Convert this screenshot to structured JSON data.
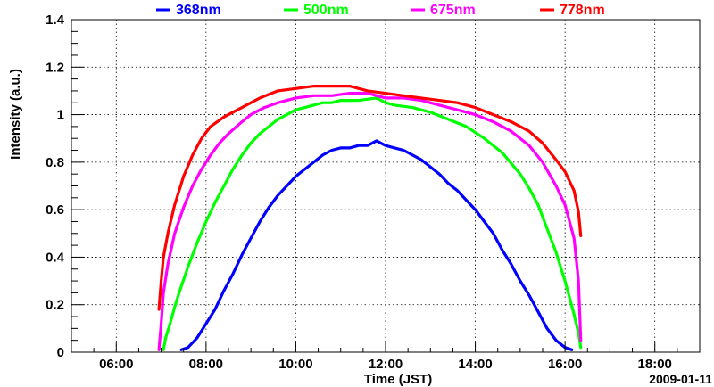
{
  "chart_data": {
    "type": "line",
    "title": "",
    "xlabel": "Time (JST)",
    "ylabel": "Intensity (a.u.)",
    "date_label": "2009-01-11",
    "xlim": [
      5.0,
      19.0
    ],
    "ylim": [
      0,
      1.4
    ],
    "x_ticks": [
      6,
      8,
      10,
      12,
      14,
      16,
      18
    ],
    "x_tick_labels": [
      "06:00",
      "08:00",
      "10:00",
      "12:00",
      "14:00",
      "16:00",
      "18:00"
    ],
    "y_ticks": [
      0,
      0.2,
      0.4,
      0.6,
      0.8,
      1.0,
      1.2,
      1.4
    ],
    "y_tick_labels": [
      "0",
      "0.2",
      "0.4",
      "0.6",
      "0.8",
      "1",
      "1.2",
      "1.4"
    ],
    "grid": true,
    "legend_position": "top",
    "series": [
      {
        "name": "368nm",
        "color": "#0000ff",
        "points": [
          [
            7.45,
            0.01
          ],
          [
            7.6,
            0.02
          ],
          [
            7.8,
            0.06
          ],
          [
            8.0,
            0.12
          ],
          [
            8.2,
            0.18
          ],
          [
            8.4,
            0.26
          ],
          [
            8.6,
            0.33
          ],
          [
            8.8,
            0.41
          ],
          [
            9.0,
            0.48
          ],
          [
            9.2,
            0.55
          ],
          [
            9.4,
            0.61
          ],
          [
            9.6,
            0.66
          ],
          [
            9.8,
            0.7
          ],
          [
            10.0,
            0.74
          ],
          [
            10.2,
            0.77
          ],
          [
            10.4,
            0.8
          ],
          [
            10.6,
            0.83
          ],
          [
            10.8,
            0.85
          ],
          [
            11.0,
            0.86
          ],
          [
            11.2,
            0.86
          ],
          [
            11.4,
            0.87
          ],
          [
            11.6,
            0.87
          ],
          [
            11.8,
            0.89
          ],
          [
            12.0,
            0.87
          ],
          [
            12.2,
            0.86
          ],
          [
            12.4,
            0.85
          ],
          [
            12.6,
            0.83
          ],
          [
            12.8,
            0.81
          ],
          [
            13.0,
            0.78
          ],
          [
            13.2,
            0.75
          ],
          [
            13.4,
            0.71
          ],
          [
            13.6,
            0.68
          ],
          [
            13.8,
            0.64
          ],
          [
            14.0,
            0.6
          ],
          [
            14.2,
            0.55
          ],
          [
            14.4,
            0.5
          ],
          [
            14.6,
            0.43
          ],
          [
            14.8,
            0.37
          ],
          [
            15.0,
            0.3
          ],
          [
            15.2,
            0.24
          ],
          [
            15.4,
            0.17
          ],
          [
            15.6,
            0.1
          ],
          [
            15.8,
            0.05
          ],
          [
            16.0,
            0.02
          ],
          [
            16.15,
            0.01
          ]
        ]
      },
      {
        "name": "500nm",
        "color": "#00ff00",
        "points": [
          [
            7.05,
            0.01
          ],
          [
            7.1,
            0.06
          ],
          [
            7.2,
            0.12
          ],
          [
            7.3,
            0.19
          ],
          [
            7.4,
            0.25
          ],
          [
            7.6,
            0.36
          ],
          [
            7.8,
            0.46
          ],
          [
            8.0,
            0.55
          ],
          [
            8.2,
            0.63
          ],
          [
            8.4,
            0.7
          ],
          [
            8.6,
            0.77
          ],
          [
            8.8,
            0.83
          ],
          [
            9.0,
            0.88
          ],
          [
            9.2,
            0.92
          ],
          [
            9.4,
            0.95
          ],
          [
            9.6,
            0.98
          ],
          [
            9.8,
            1.0
          ],
          [
            10.0,
            1.02
          ],
          [
            10.2,
            1.03
          ],
          [
            10.4,
            1.04
          ],
          [
            10.6,
            1.05
          ],
          [
            10.8,
            1.05
          ],
          [
            11.0,
            1.06
          ],
          [
            11.4,
            1.06
          ],
          [
            11.8,
            1.07
          ],
          [
            12.0,
            1.05
          ],
          [
            12.2,
            1.04
          ],
          [
            12.6,
            1.03
          ],
          [
            13.0,
            1.01
          ],
          [
            13.4,
            0.98
          ],
          [
            13.8,
            0.95
          ],
          [
            14.2,
            0.9
          ],
          [
            14.6,
            0.84
          ],
          [
            15.0,
            0.75
          ],
          [
            15.2,
            0.69
          ],
          [
            15.4,
            0.62
          ],
          [
            15.6,
            0.52
          ],
          [
            15.8,
            0.42
          ],
          [
            16.0,
            0.3
          ],
          [
            16.2,
            0.16
          ],
          [
            16.3,
            0.08
          ],
          [
            16.35,
            0.02
          ]
        ]
      },
      {
        "name": "675nm",
        "color": "#ff00ff",
        "points": [
          [
            6.95,
            0.01
          ],
          [
            7.0,
            0.12
          ],
          [
            7.05,
            0.25
          ],
          [
            7.15,
            0.37
          ],
          [
            7.3,
            0.5
          ],
          [
            7.5,
            0.61
          ],
          [
            7.7,
            0.7
          ],
          [
            7.9,
            0.77
          ],
          [
            8.1,
            0.83
          ],
          [
            8.3,
            0.88
          ],
          [
            8.5,
            0.92
          ],
          [
            8.8,
            0.97
          ],
          [
            9.0,
            1.0
          ],
          [
            9.3,
            1.03
          ],
          [
            9.6,
            1.05
          ],
          [
            10.0,
            1.07
          ],
          [
            10.4,
            1.08
          ],
          [
            10.8,
            1.08
          ],
          [
            11.2,
            1.09
          ],
          [
            11.6,
            1.09
          ],
          [
            12.0,
            1.07
          ],
          [
            12.4,
            1.07
          ],
          [
            12.8,
            1.06
          ],
          [
            13.2,
            1.04
          ],
          [
            13.6,
            1.02
          ],
          [
            14.0,
            1.0
          ],
          [
            14.4,
            0.97
          ],
          [
            14.8,
            0.93
          ],
          [
            15.2,
            0.87
          ],
          [
            15.5,
            0.8
          ],
          [
            15.8,
            0.7
          ],
          [
            16.0,
            0.62
          ],
          [
            16.2,
            0.48
          ],
          [
            16.3,
            0.3
          ],
          [
            16.35,
            0.05
          ]
        ]
      },
      {
        "name": "778nm",
        "color": "#ff0000",
        "points": [
          [
            6.95,
            0.18
          ],
          [
            7.0,
            0.3
          ],
          [
            7.05,
            0.4
          ],
          [
            7.15,
            0.5
          ],
          [
            7.3,
            0.62
          ],
          [
            7.5,
            0.74
          ],
          [
            7.7,
            0.83
          ],
          [
            7.9,
            0.9
          ],
          [
            8.1,
            0.95
          ],
          [
            8.4,
            0.99
          ],
          [
            8.8,
            1.03
          ],
          [
            9.2,
            1.07
          ],
          [
            9.6,
            1.1
          ],
          [
            10.0,
            1.11
          ],
          [
            10.4,
            1.12
          ],
          [
            10.8,
            1.12
          ],
          [
            11.2,
            1.12
          ],
          [
            11.6,
            1.1
          ],
          [
            12.0,
            1.09
          ],
          [
            12.4,
            1.08
          ],
          [
            12.8,
            1.07
          ],
          [
            13.2,
            1.06
          ],
          [
            13.6,
            1.05
          ],
          [
            14.0,
            1.03
          ],
          [
            14.4,
            1.0
          ],
          [
            14.8,
            0.97
          ],
          [
            15.2,
            0.93
          ],
          [
            15.5,
            0.88
          ],
          [
            15.8,
            0.81
          ],
          [
            16.0,
            0.76
          ],
          [
            16.2,
            0.68
          ],
          [
            16.3,
            0.59
          ],
          [
            16.35,
            0.49
          ]
        ]
      }
    ]
  }
}
